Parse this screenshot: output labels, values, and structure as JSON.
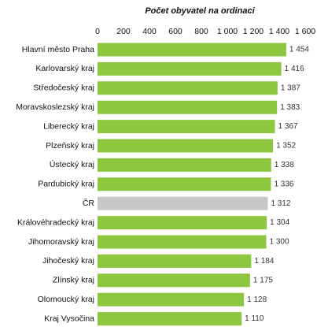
{
  "chart_data": {
    "type": "bar",
    "orientation": "horizontal",
    "title": "Počet obyvatel na ordinaci",
    "categories": [
      "Hlavní město Praha",
      "Karlovarský kraj",
      "Středočeský kraj",
      "Moravskoslezský kraj",
      "Liberecký kraj",
      "Plzeňský kraj",
      "Ústecký kraj",
      "Pardubický kraj",
      "ČR",
      "Královéhradecký kraj",
      "Jihomoravský kraj",
      "Jihočeský kraj",
      "Zlínský kraj",
      "Olomoucký kraj",
      "Kraj Vysočina"
    ],
    "values": [
      1454,
      1416,
      1387,
      1383,
      1367,
      1352,
      1338,
      1336,
      1312,
      1304,
      1300,
      1184,
      1175,
      1128,
      1110
    ],
    "value_labels": [
      "1 454",
      "1 416",
      "1 387",
      "1 383",
      "1 367",
      "1 352",
      "1 338",
      "1 336",
      "1 312",
      "1 304",
      "1 300",
      "1 184",
      "1 175",
      "1 128",
      "1 110"
    ],
    "colors": [
      "#8dc63f",
      "#8dc63f",
      "#8dc63f",
      "#8dc63f",
      "#8dc63f",
      "#8dc63f",
      "#8dc63f",
      "#8dc63f",
      "#c8c8c8",
      "#8dc63f",
      "#8dc63f",
      "#8dc63f",
      "#8dc63f",
      "#8dc63f",
      "#8dc63f"
    ],
    "xlim": [
      0,
      1600
    ],
    "xticks": [
      0,
      200,
      400,
      600,
      800,
      {
        "value": 1000,
        "label": "1 000"
      },
      {
        "value": 1200,
        "label": "1 200"
      },
      {
        "value": 1400,
        "label": "1 400"
      },
      {
        "value": 1600,
        "label": "1 600"
      }
    ],
    "grid": false
  }
}
